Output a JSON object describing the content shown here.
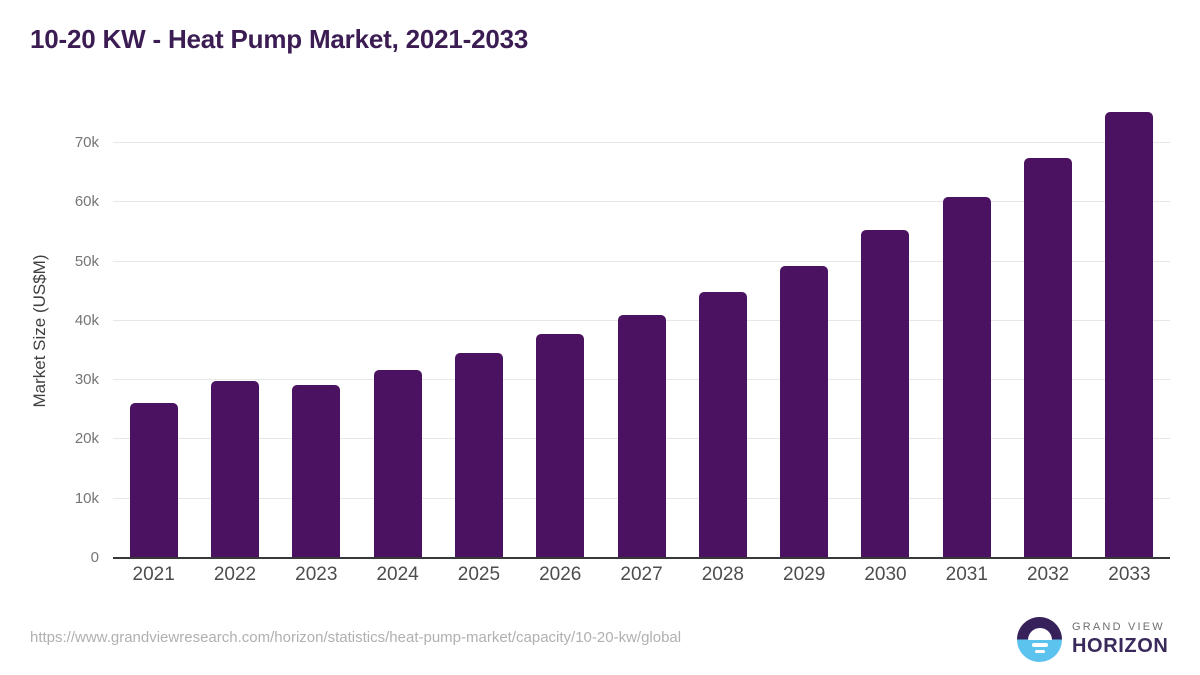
{
  "chart_data": {
    "type": "bar",
    "title": "10-20 KW - Heat Pump Market, 2021-2033",
    "xlabel": "",
    "ylabel": "Market Size (US$M)",
    "categories": [
      "2021",
      "2022",
      "2023",
      "2024",
      "2025",
      "2026",
      "2027",
      "2028",
      "2029",
      "2030",
      "2031",
      "2032",
      "2033"
    ],
    "values": [
      26100,
      29800,
      29100,
      31700,
      34500,
      37700,
      41000,
      44800,
      49200,
      55400,
      60900,
      67500,
      75300
    ],
    "yticks": {
      "values": [
        0,
        10000,
        20000,
        30000,
        40000,
        50000,
        60000,
        70000
      ],
      "labels": [
        "0",
        "10k",
        "20k",
        "30k",
        "40k",
        "50k",
        "60k",
        "70k"
      ]
    },
    "ylim": [
      0,
      76400
    ],
    "grid": "horizontal",
    "legend": "none",
    "bar_color": "#4a1260"
  },
  "footer": {
    "source_url": "https://www.grandviewresearch.com/horizon/statistics/heat-pump-market/capacity/10-20-kw/global",
    "brand": {
      "line1": "GRAND VIEW",
      "line2": "HORIZON"
    }
  },
  "colors": {
    "background": "#ffffff",
    "title": "#3b1d53",
    "bar": "#4a1260",
    "axis_line": "#37383a",
    "gridline": "#e7e7e7",
    "tick_label": "#757575",
    "x_label": "#4d4d4d",
    "y_axis_title": "#3f3f3f",
    "source_url": "#b0b0b0",
    "logo_purple": "#37215a",
    "logo_blue": "#5cc3ef",
    "brand_gray": "#6f6f6f",
    "brand_purple": "#3a2a5c"
  }
}
